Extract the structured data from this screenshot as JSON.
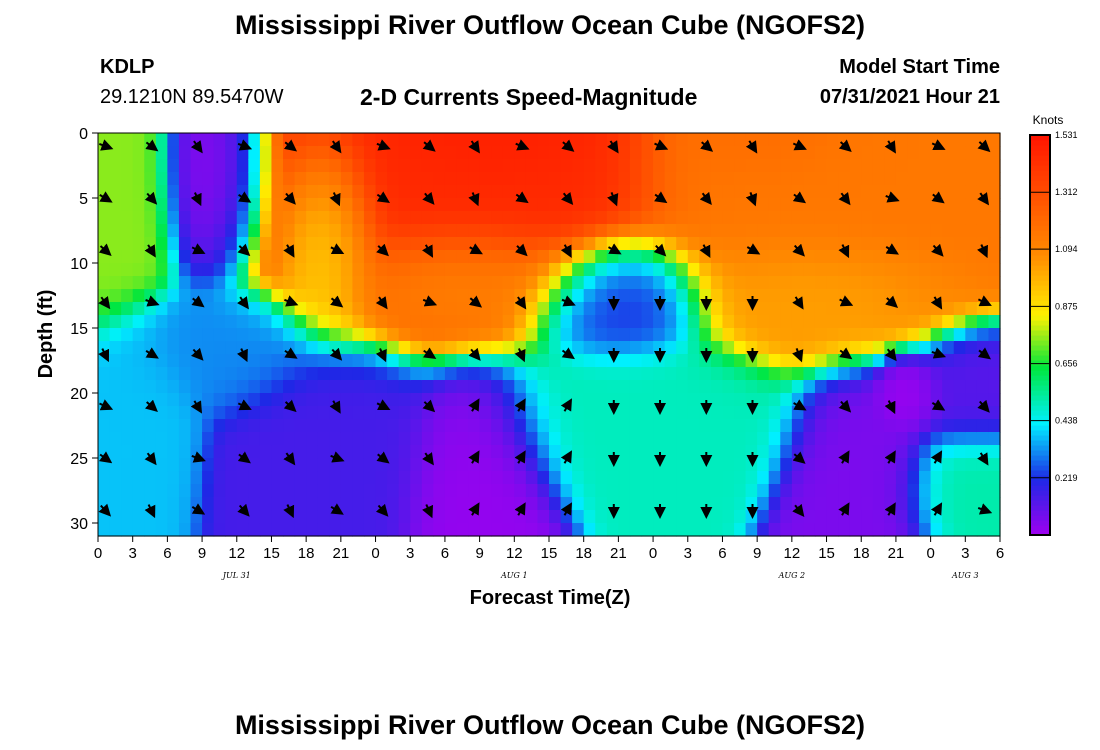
{
  "page": {
    "title": "Mississippi River Outflow Ocean Cube (NGOFS2)",
    "bottom_title": "Mississippi River Outflow Ocean Cube (NGOFS2)",
    "station": "KDLP",
    "location": "29.1210N  89.5470W",
    "subtitle": "2-D Currents Speed-Magnitude",
    "model_start_label": "Model Start Time",
    "model_start_value": "07/31/2021 Hour 21"
  },
  "chart_data": {
    "type": "heatmap",
    "title": "2-D Currents Speed-Magnitude",
    "xlabel": "Forecast Time(Z)",
    "ylabel": "Depth (ft)",
    "xlim": [
      0,
      78
    ],
    "ylim": [
      0,
      31
    ],
    "x_ticks": [
      0,
      3,
      6,
      9,
      12,
      15,
      18,
      21,
      24,
      27,
      30,
      33,
      36,
      39,
      42,
      45,
      48,
      51,
      54,
      57,
      60,
      63,
      66,
      69,
      72,
      75,
      78
    ],
    "x_tick_labels": [
      "0",
      "3",
      "6",
      "9",
      "12",
      "15",
      "18",
      "21",
      "0",
      "3",
      "6",
      "9",
      "12",
      "15",
      "18",
      "21",
      "0",
      "3",
      "6",
      "9",
      "12",
      "15",
      "18",
      "21",
      "0",
      "3",
      "6"
    ],
    "y_ticks": [
      0,
      5,
      10,
      15,
      20,
      25,
      30
    ],
    "y_tick_labels": [
      "0",
      "5",
      "10",
      "15",
      "20",
      "25",
      "30"
    ],
    "date_labels": [
      {
        "text": "JUL 31",
        "x": 12
      },
      {
        "text": "AUG 1",
        "x": 36
      },
      {
        "text": "AUG 2",
        "x": 60
      },
      {
        "text": "AUG 3",
        "x": 75
      }
    ],
    "colorbar": {
      "unit_label": "Knots",
      "min": 0.0,
      "max": 1.531,
      "ticks": [
        1.531,
        1.312,
        1.094,
        0.875,
        0.656,
        0.438,
        0.219
      ],
      "tick_labels": [
        "1.531",
        "1.312",
        "1.094",
        "0.875",
        "0.656",
        "0.438",
        "0.219"
      ]
    },
    "speed_hotspots": [
      {
        "x": 2,
        "depth": 4,
        "speed": 0.75,
        "sx": 3,
        "sy": 6
      },
      {
        "x": 10,
        "depth": 3,
        "speed": 0.02,
        "sx": 3,
        "sy": 5
      },
      {
        "x": 30,
        "depth": 4,
        "speed": 1.45,
        "sx": 11,
        "sy": 7
      },
      {
        "x": 33,
        "depth": 0,
        "speed": 1.5,
        "sx": 6,
        "sy": 3
      },
      {
        "x": 20,
        "depth": 8,
        "speed": 0.85,
        "sx": 3,
        "sy": 5
      },
      {
        "x": 31,
        "depth": 11,
        "speed": 1.05,
        "sx": 7,
        "sy": 3
      },
      {
        "x": 63,
        "depth": 5,
        "speed": 1.15,
        "sx": 10,
        "sy": 7
      },
      {
        "x": 62,
        "depth": 12,
        "speed": 1.0,
        "sx": 7,
        "sy": 3
      },
      {
        "x": 58,
        "depth": 0,
        "speed": 1.2,
        "sx": 5,
        "sy": 3
      },
      {
        "x": 45,
        "depth": 13,
        "speed": 0.2,
        "sx": 5,
        "sy": 3
      },
      {
        "x": 47,
        "depth": 22,
        "speed": 0.5,
        "sx": 8,
        "sy": 4
      },
      {
        "x": 76,
        "depth": 27,
        "speed": 0.52,
        "sx": 4,
        "sy": 3
      },
      {
        "x": 11,
        "depth": 17,
        "speed": 0.32,
        "sx": 5,
        "sy": 3
      },
      {
        "x": 4,
        "depth": 22,
        "speed": 0.38,
        "sx": 3,
        "sy": 5
      },
      {
        "x": 20,
        "depth": 24,
        "speed": 0.15,
        "sx": 6,
        "sy": 5
      },
      {
        "x": 33,
        "depth": 26,
        "speed": 0.02,
        "sx": 4,
        "sy": 5
      },
      {
        "x": 66,
        "depth": 26,
        "speed": 0.06,
        "sx": 4,
        "sy": 5
      },
      {
        "x": 70,
        "depth": 20,
        "speed": 0.0,
        "sx": 2,
        "sy": 2
      },
      {
        "x": 76,
        "depth": 20,
        "speed": 0.12,
        "sx": 4,
        "sy": 3
      }
    ],
    "arrow_depths": [
      1,
      5,
      9,
      13,
      17,
      21,
      25,
      29
    ],
    "arrow_times": [
      0,
      4,
      8,
      12,
      16,
      20,
      24,
      28,
      32,
      36,
      40,
      44,
      48,
      52,
      56,
      60,
      64,
      68,
      72,
      76
    ],
    "arrow_note": "arrows show current direction at each depth/time sample"
  }
}
